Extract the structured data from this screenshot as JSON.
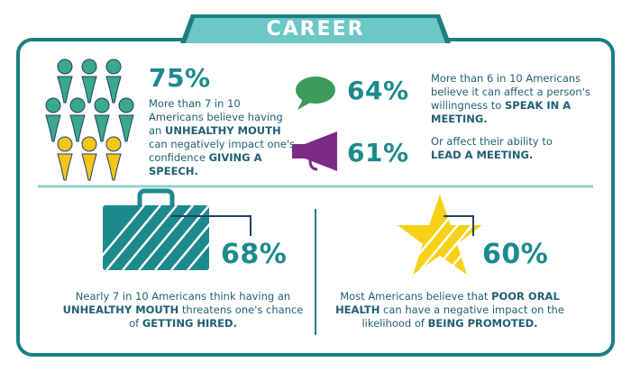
{
  "header": {
    "title": "CAREER"
  },
  "stats": [
    {
      "value": "75%",
      "text": [
        "More than 7 in 10 Americans believe having an ",
        "UNHEALTHY MOUTH",
        " can negatively impact one's confidence ",
        "GIVING A SPEECH."
      ]
    },
    {
      "value": "64%",
      "text": [
        "More than 6 in 10 Americans believe it can affect a person's willingness to ",
        "SPEAK IN A MEETING."
      ]
    },
    {
      "value": "61%",
      "text": [
        "Or affect their ability to ",
        "LEAD A MEETING."
      ]
    },
    {
      "value": "68%",
      "text": [
        "Nearly 7 in 10 Americans think having an ",
        "UNHEALTHY MOUTH",
        " threatens one's chance of ",
        "GETTING HIRED."
      ]
    },
    {
      "value": "60%",
      "text": [
        "Most Americans believe that ",
        "POOR ORAL HEALTH",
        " can have a negative impact on the likelihood of ",
        "BEING PROMOTED."
      ]
    }
  ]
}
